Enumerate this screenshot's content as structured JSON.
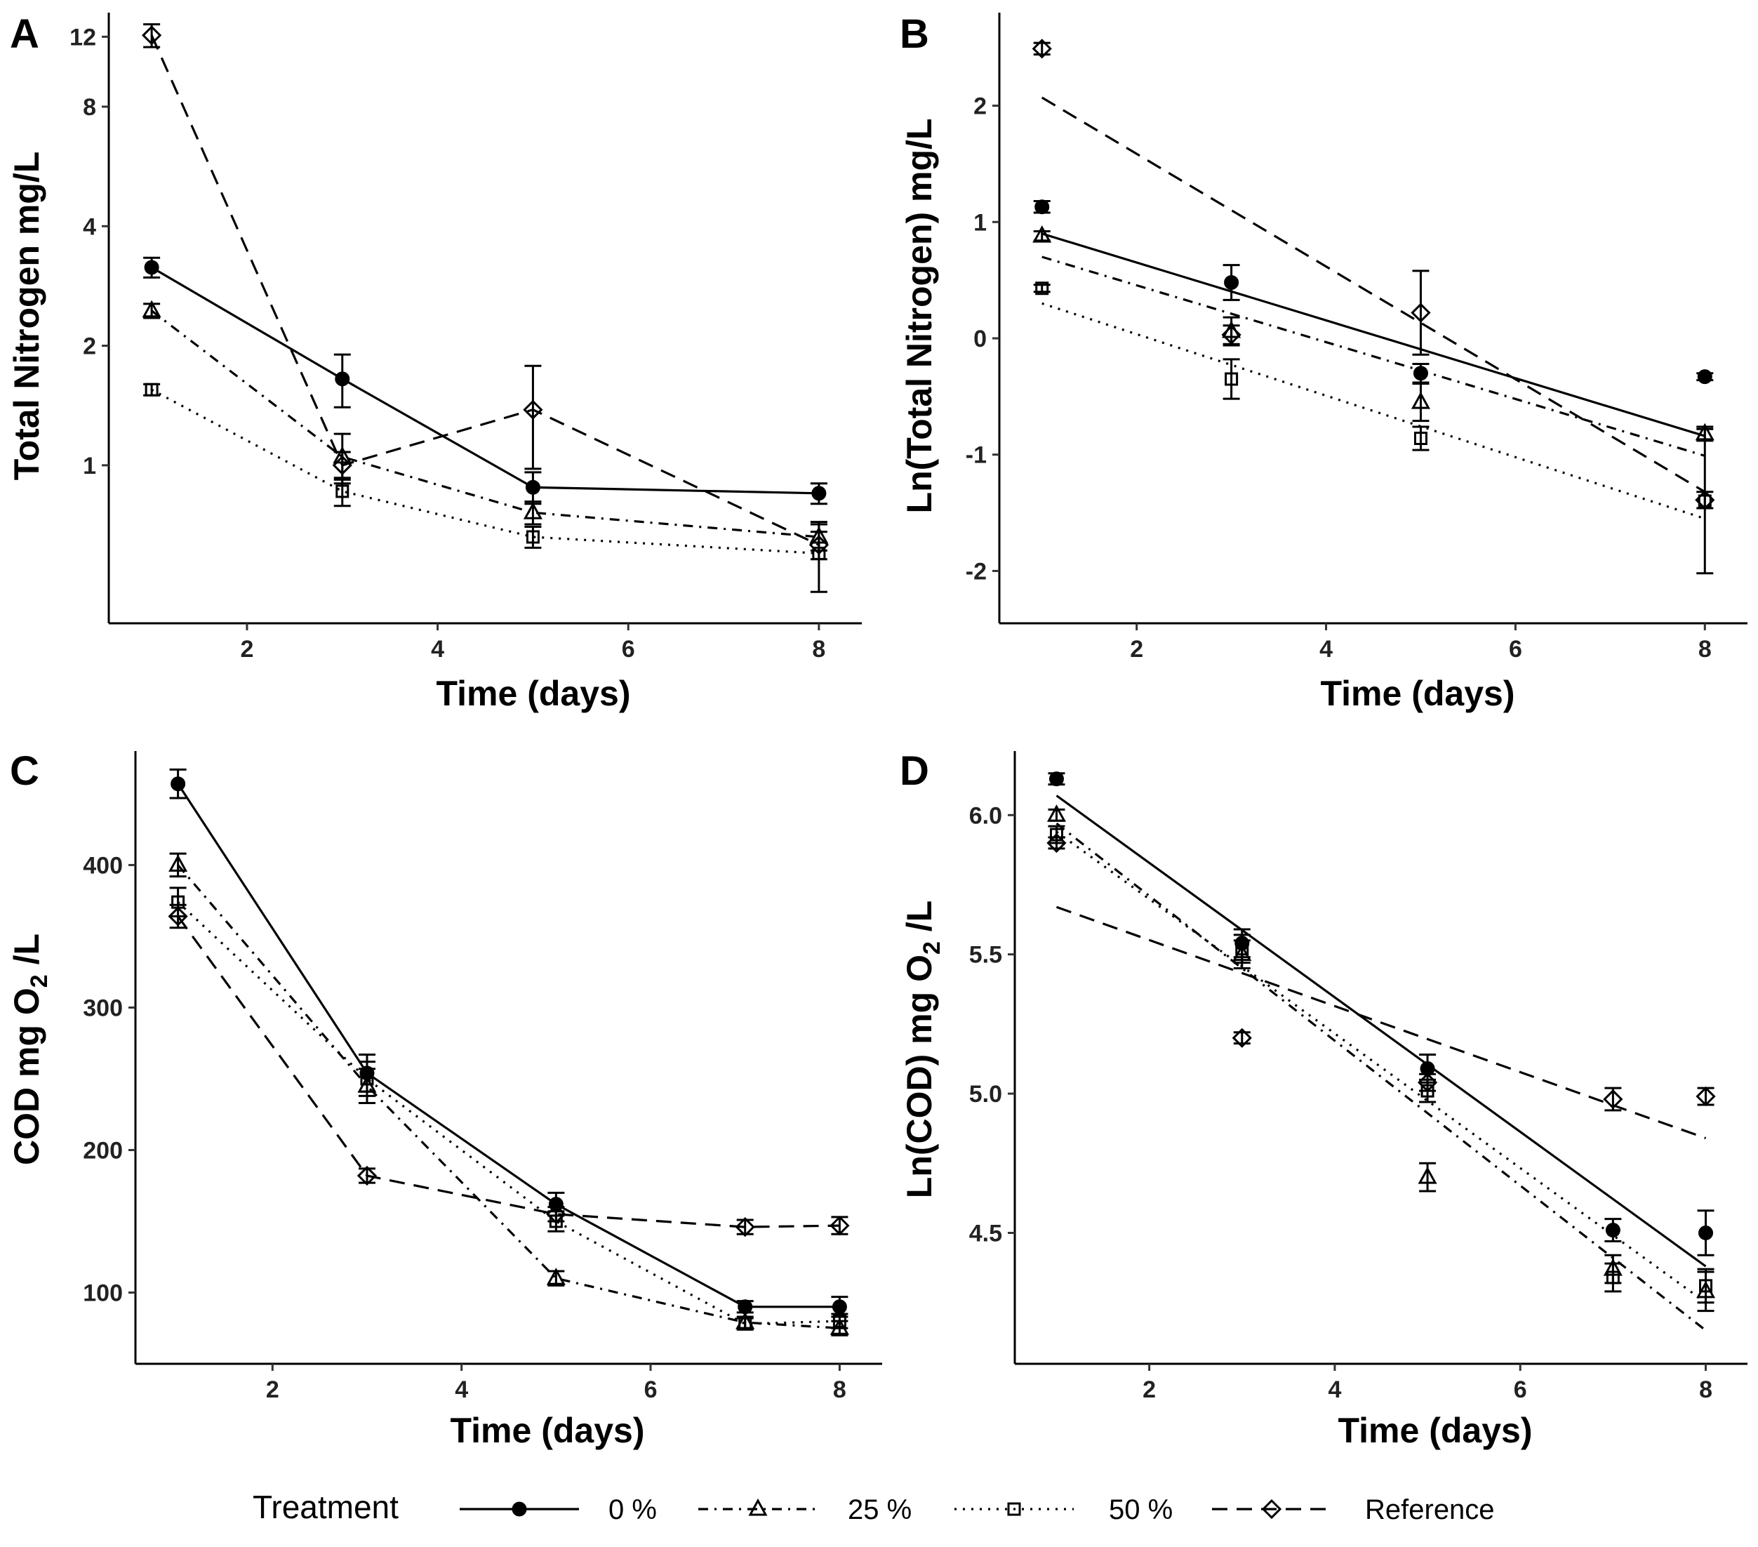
{
  "legend": {
    "title": "Treatment",
    "position": "bottom",
    "entries": [
      {
        "label": "0 %",
        "marker": "filled-circle",
        "line": "solid"
      },
      {
        "label": "25 %",
        "marker": "open-triangle",
        "line": "dotdash"
      },
      {
        "label": "50 %",
        "marker": "open-square",
        "line": "dotted"
      },
      {
        "label": "Reference",
        "marker": "open-diamond",
        "line": "dashed"
      }
    ]
  },
  "chart_data": [
    {
      "panel": "A",
      "type": "line",
      "xlabel": "Time (days)",
      "ylabel": "Total Nitrogen mg/L",
      "yscale": "log",
      "xlim": [
        0.55,
        8.45
      ],
      "ylim": [
        0.4,
        13.8
      ],
      "xticks": [
        2,
        4,
        6,
        8
      ],
      "yticks": [
        1,
        2,
        4,
        8,
        12
      ],
      "series": [
        {
          "name": "0 %",
          "x": [
            1,
            3,
            5,
            8
          ],
          "y": [
            3.15,
            1.65,
            0.88,
            0.85
          ],
          "err": [
            0.18,
            0.25,
            0.08,
            0.05
          ]
        },
        {
          "name": "25 %",
          "x": [
            1,
            3,
            5,
            8
          ],
          "y": [
            2.45,
            1.05,
            0.76,
            0.66
          ],
          "err": [
            0.1,
            0.15,
            0.05,
            0.05
          ]
        },
        {
          "name": "50 %",
          "x": [
            1,
            3,
            5,
            8
          ],
          "y": [
            1.55,
            0.86,
            0.66,
            0.6
          ],
          "err": [
            0.05,
            0.07,
            0.04,
            0.12
          ]
        },
        {
          "name": "Reference",
          "x": [
            1,
            3,
            5,
            8
          ],
          "y": [
            12.1,
            1.0,
            1.38,
            0.63
          ],
          "err": [
            0.8,
            0.08,
            0.4,
            0.05
          ]
        }
      ]
    },
    {
      "panel": "B",
      "type": "line",
      "xlabel": "Time (days)",
      "ylabel": "Ln(Total Nitrogen) mg/L",
      "xlim": [
        0.55,
        8.45
      ],
      "ylim": [
        -2.45,
        2.8
      ],
      "xticks": [
        2,
        4,
        6,
        8
      ],
      "yticks": [
        -2,
        -1,
        0,
        1,
        2
      ],
      "yticklabels": [
        "-2",
        "-1",
        "0",
        "1",
        "2"
      ],
      "series": [
        {
          "name": "0 %",
          "x": [
            1,
            3,
            5,
            8
          ],
          "y": [
            1.13,
            0.48,
            -0.3,
            -0.33
          ],
          "err": [
            0.05,
            0.15,
            0.08,
            0.03
          ],
          "fit": [
            0.9,
            -0.84
          ]
        },
        {
          "name": "25 %",
          "x": [
            1,
            3,
            5,
            8
          ],
          "y": [
            0.88,
            0.06,
            -0.55,
            -0.82
          ],
          "err": [
            0.04,
            0.12,
            0.16,
            0.06
          ],
          "fit": [
            0.7,
            -1.01
          ]
        },
        {
          "name": "50 %",
          "x": [
            1,
            3,
            5,
            8
          ],
          "y": [
            0.43,
            -0.35,
            -0.86,
            -1.4
          ],
          "err": [
            0.03,
            0.17,
            0.1,
            0.62
          ],
          "fit": [
            0.3,
            -1.55
          ]
        },
        {
          "name": "Reference",
          "x": [
            1,
            3,
            5,
            8
          ],
          "y": [
            2.49,
            0.03,
            0.22,
            -1.39
          ],
          "err": [
            0.05,
            0.08,
            0.36,
            0.07
          ],
          "fit": [
            2.07,
            -1.32
          ]
        }
      ]
    },
    {
      "panel": "C",
      "type": "line",
      "xlabel": "Time (days)",
      "ylabel": "COD mg O2 /L",
      "xlim": [
        0.55,
        8.45
      ],
      "ylim": [
        50,
        480
      ],
      "xticks": [
        2,
        4,
        6,
        8
      ],
      "yticks": [
        100,
        200,
        300,
        400
      ],
      "series": [
        {
          "name": "0 %",
          "x": [
            1,
            3,
            5,
            7,
            8
          ],
          "y": [
            457,
            254,
            162,
            90,
            90
          ],
          "err": [
            10,
            13,
            8,
            4,
            7
          ]
        },
        {
          "name": "25 %",
          "x": [
            1,
            3,
            5,
            7,
            8
          ],
          "y": [
            400,
            245,
            110,
            79,
            75
          ],
          "err": [
            8,
            12,
            5,
            4,
            5
          ]
        },
        {
          "name": "50 %",
          "x": [
            1,
            3,
            5,
            7,
            8
          ],
          "y": [
            374,
            250,
            150,
            78,
            80
          ],
          "err": [
            10,
            12,
            7,
            4,
            5
          ]
        },
        {
          "name": "Reference",
          "x": [
            1,
            3,
            5,
            7,
            8
          ],
          "y": [
            364,
            182,
            155,
            146,
            147
          ],
          "err": [
            8,
            5,
            5,
            5,
            6
          ]
        }
      ]
    },
    {
      "panel": "D",
      "type": "line",
      "xlabel": "Time (days)",
      "ylabel": "Ln(COD) mg O2 /L",
      "xlim": [
        0.55,
        8.45
      ],
      "ylim": [
        4.03,
        6.23
      ],
      "xticks": [
        2,
        4,
        6,
        8
      ],
      "yticks": [
        4.5,
        5.0,
        5.5,
        6.0
      ],
      "yticklabels": [
        "4.5",
        "5.0",
        "5.5",
        "6.0"
      ],
      "series": [
        {
          "name": "0 %",
          "x": [
            1,
            3,
            5,
            7,
            8
          ],
          "y": [
            6.13,
            5.54,
            5.09,
            4.51,
            4.5
          ],
          "err": [
            0.02,
            0.05,
            0.05,
            0.04,
            0.08
          ],
          "fit": [
            6.07,
            4.38
          ]
        },
        {
          "name": "25 %",
          "x": [
            1,
            3,
            5,
            7,
            8
          ],
          "y": [
            6.0,
            5.5,
            4.7,
            4.37,
            4.29
          ],
          "err": [
            0.02,
            0.05,
            0.05,
            0.05,
            0.07
          ],
          "fit": [
            5.97,
            4.15
          ]
        },
        {
          "name": "50 %",
          "x": [
            1,
            3,
            5,
            7,
            8
          ],
          "y": [
            5.93,
            5.52,
            5.01,
            4.34,
            4.31
          ],
          "err": [
            0.03,
            0.05,
            0.04,
            0.05,
            0.06
          ],
          "fit": [
            5.94,
            4.25
          ]
        },
        {
          "name": "Reference",
          "x": [
            1,
            3,
            5,
            7,
            8
          ],
          "y": [
            5.9,
            5.2,
            5.04,
            4.98,
            4.99
          ],
          "err": [
            0.02,
            0.02,
            0.03,
            0.04,
            0.03
          ],
          "fit": [
            5.67,
            4.84
          ]
        }
      ]
    }
  ]
}
